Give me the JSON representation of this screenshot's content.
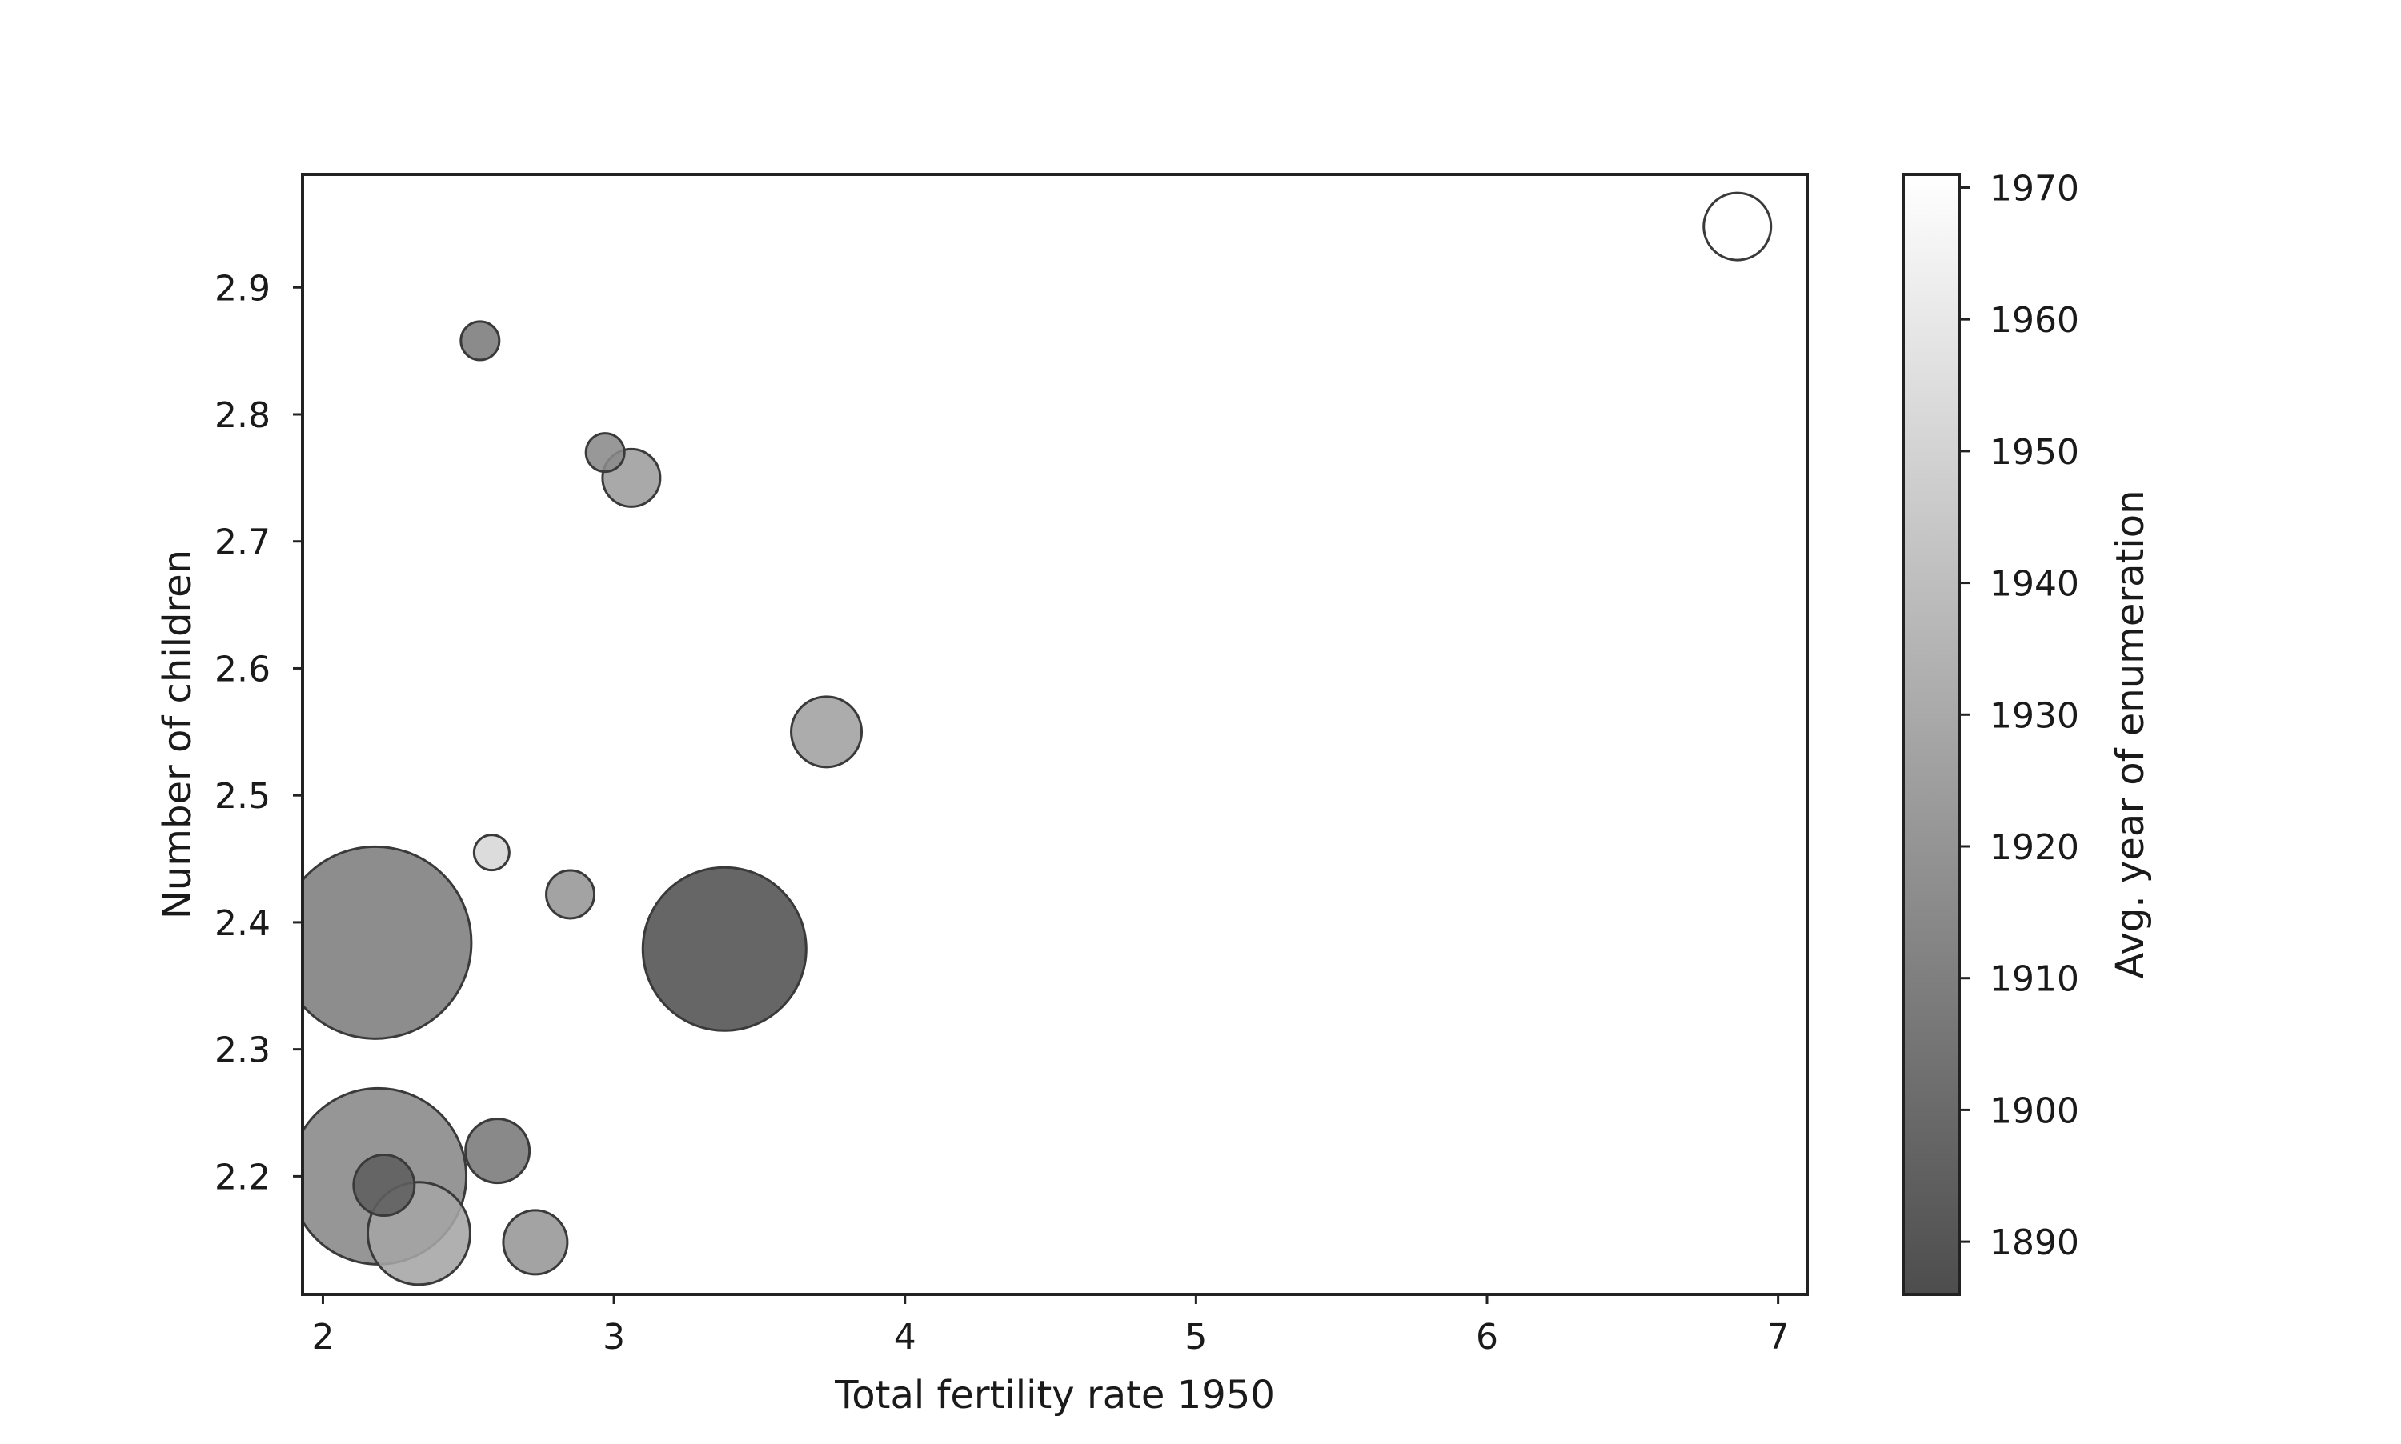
{
  "chart_data": {
    "type": "scatter",
    "title": "",
    "xlabel": "Total fertility rate 1950",
    "ylabel": "Number of children",
    "xlim": [
      1.93,
      7.1
    ],
    "ylim": [
      2.107,
      2.989
    ],
    "xticks": [
      2,
      3,
      4,
      5,
      6,
      7
    ],
    "yticks": [
      2.2,
      2.3,
      2.4,
      2.5,
      2.6,
      2.7,
      2.8,
      2.9
    ],
    "grid": false,
    "colorbar": {
      "label": "Avg. year of enumeration",
      "range": [
        1886,
        1971
      ],
      "ticks": [
        1890,
        1900,
        1910,
        1920,
        1930,
        1940,
        1950,
        1960,
        1970
      ],
      "colormap": "greys-reversed",
      "colors": [
        "#4d4d4d",
        "#ffffff"
      ]
    },
    "marker_edge_color": "#3a3a3a",
    "points": [
      {
        "x": 2.18,
        "y": 2.384,
        "year": 1909,
        "size": 60
      },
      {
        "x": 2.19,
        "y": 2.2,
        "year": 1914,
        "size": 55
      },
      {
        "x": 3.38,
        "y": 2.379,
        "year": 1888,
        "size": 51
      },
      {
        "x": 2.33,
        "y": 2.155,
        "year": 1928,
        "size": 32
      },
      {
        "x": 6.86,
        "y": 2.948,
        "year": 1971,
        "size": 21
      },
      {
        "x": 3.73,
        "y": 2.55,
        "year": 1926,
        "size": 22
      },
      {
        "x": 2.6,
        "y": 2.22,
        "year": 1907,
        "size": 20
      },
      {
        "x": 2.73,
        "y": 2.148,
        "year": 1921,
        "size": 20
      },
      {
        "x": 2.21,
        "y": 2.193,
        "year": 1894,
        "size": 19
      },
      {
        "x": 3.06,
        "y": 2.75,
        "year": 1924,
        "size": 18
      },
      {
        "x": 2.85,
        "y": 2.422,
        "year": 1921,
        "size": 15
      },
      {
        "x": 2.97,
        "y": 2.77,
        "year": 1915,
        "size": 12
      },
      {
        "x": 2.54,
        "y": 2.858,
        "year": 1908,
        "size": 12
      },
      {
        "x": 2.58,
        "y": 2.455,
        "year": 1952,
        "size": 11
      }
    ]
  }
}
